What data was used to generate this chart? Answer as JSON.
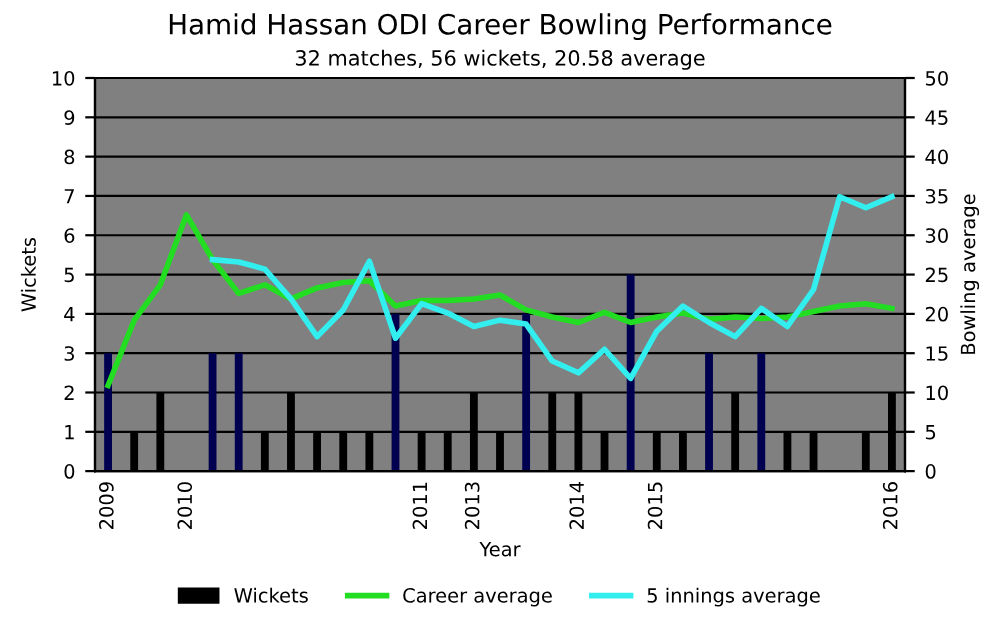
{
  "chart_data": {
    "type": "bar",
    "title": "Hamid Hassan ODI Career Bowling Performance",
    "subtitle": "32 matches, 56 wickets, 20.58 average",
    "xlabel": "Year",
    "ylabel": "Wickets",
    "y2label": "Bowling average",
    "categories": [
      "2009",
      null,
      null,
      "2010",
      null,
      null,
      null,
      null,
      null,
      null,
      null,
      null,
      "2011",
      null,
      "2013",
      null,
      null,
      null,
      "2014",
      null,
      null,
      "2015",
      null,
      null,
      null,
      null,
      null,
      null,
      null,
      null,
      "2016"
    ],
    "series": [
      {
        "name": "Wickets",
        "color": "#000000",
        "colors": [
          "#000050",
          "#000000",
          "#000000",
          "#000000",
          "#000050",
          "#000050",
          "#000000",
          "#000000",
          "#000000",
          "#000000",
          "#000000",
          "#000050",
          "#000000",
          "#000000",
          "#000000",
          "#000000",
          "#000050",
          "#000000",
          "#000000",
          "#000000",
          "#000050",
          "#000000",
          "#000000",
          "#000050",
          "#000000",
          "#000050",
          "#000000",
          "#000000",
          "#000000",
          "#000000",
          "#000000"
        ],
        "values": [
          3,
          1,
          2,
          0,
          3,
          3,
          1,
          2,
          1,
          1,
          1,
          4,
          1,
          1,
          2,
          1,
          4,
          2,
          2,
          1,
          5,
          1,
          1,
          3,
          2,
          3,
          1,
          1,
          0,
          1,
          2
        ]
      },
      {
        "name": "Career average",
        "type": "line",
        "axis": "y2",
        "color": "#22dd22",
        "values": [
          10.9,
          19.2,
          23.7,
          32.6,
          26.9,
          22.6,
          23.7,
          21.9,
          23.3,
          24.0,
          24.2,
          21.0,
          21.7,
          21.7,
          21.9,
          22.4,
          20.5,
          19.6,
          18.9,
          20.2,
          18.9,
          19.6,
          20.1,
          19.3,
          19.6,
          19.4,
          19.6,
          20.3,
          21.0,
          21.3,
          20.7
        ]
      },
      {
        "name": "5 innings average",
        "type": "line",
        "axis": "y2",
        "color": "#33eeee",
        "values": [
          null,
          null,
          null,
          null,
          26.9,
          26.6,
          25.7,
          21.9,
          17.1,
          20.5,
          26.7,
          16.9,
          21.3,
          20.1,
          18.4,
          19.2,
          18.7,
          14.0,
          12.5,
          15.5,
          11.8,
          17.8,
          21.0,
          18.9,
          17.1,
          20.7,
          18.4,
          23.1,
          34.9,
          33.5,
          34.9
        ]
      }
    ],
    "ylim": [
      0,
      10
    ],
    "yticks": [
      0,
      1,
      2,
      3,
      4,
      5,
      6,
      7,
      8,
      9,
      10
    ],
    "y2lim": [
      0,
      50
    ],
    "y2ticks": [
      0,
      5,
      10,
      15,
      20,
      25,
      30,
      35,
      40,
      45,
      50
    ],
    "grid": "y",
    "legend": "bottom"
  }
}
